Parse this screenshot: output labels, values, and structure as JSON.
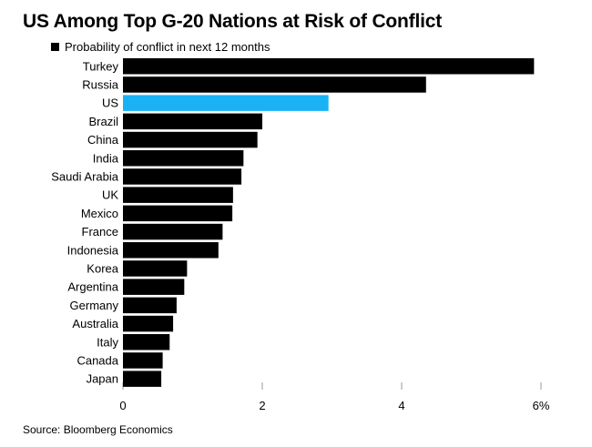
{
  "chart_data": {
    "type": "bar",
    "orientation": "horizontal",
    "title": "US Among Top G-20 Nations at Risk of Conflict",
    "legend": [
      {
        "label": "Probability of conflict in next 12 months",
        "color": "#000000"
      }
    ],
    "categories": [
      "Turkey",
      "Russia",
      "US",
      "Brazil",
      "China",
      "India",
      "Saudi Arabia",
      "UK",
      "Mexico",
      "France",
      "Indonesia",
      "Korea",
      "Argentina",
      "Germany",
      "Australia",
      "Italy",
      "Canada",
      "Japan"
    ],
    "series": [
      {
        "name": "Probability of conflict in next 12 months",
        "values": [
          5.9,
          4.35,
          2.95,
          2.0,
          1.93,
          1.73,
          1.7,
          1.58,
          1.57,
          1.43,
          1.37,
          0.92,
          0.88,
          0.77,
          0.72,
          0.67,
          0.57,
          0.55
        ]
      }
    ],
    "highlight": {
      "category": "US",
      "color": "#1ab2f5"
    },
    "bar_color": "#000000",
    "xlim": [
      0,
      6
    ],
    "xticks": [
      0,
      2,
      4,
      6
    ],
    "xtick_labels": [
      "0",
      "2",
      "4",
      "6%"
    ],
    "grid": "vertical-ticks",
    "source": "Source: Bloomberg Economics"
  }
}
